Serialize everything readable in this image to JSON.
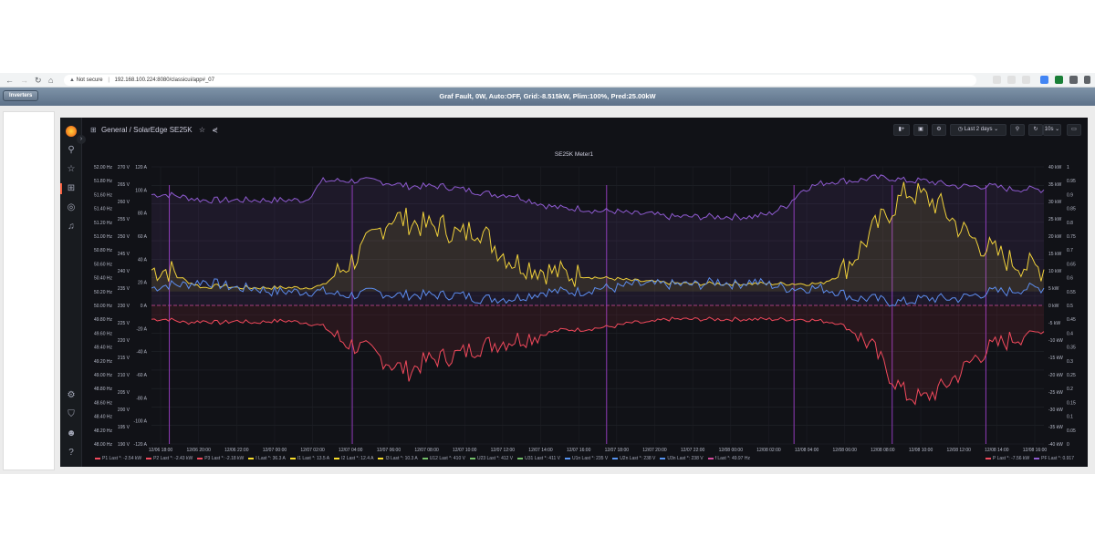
{
  "browser": {
    "security": "Not secure",
    "url": "192.168.100.224:8080/classicui/app#_07"
  },
  "app_header": {
    "inverters_label": "Inverters",
    "status": "Graf Fault, 0W, Auto:OFF, Grid:-8.515kW, Plim:100%, Pred:25.00kW"
  },
  "grafana": {
    "breadcrumb_folder": "General",
    "breadcrumb_sep": "/",
    "dashboard_title": "SolarEdge SE25K",
    "time_range": "Last 2 days",
    "refresh": "10s",
    "panel_title": "SE25K Meter1"
  },
  "colors": {
    "P": "#f2495c",
    "I": "#fade2a",
    "U": "#5794f2",
    "PF": "#8f5bd1",
    "f": "#d44a9c"
  },
  "chart_data": {
    "type": "line",
    "title": "SE25K Meter1",
    "x_ticks": [
      "12/06 18:00",
      "12/06 20:00",
      "12/06 22:00",
      "12/07 00:00",
      "12/07 02:00",
      "12/07 04:00",
      "12/07 06:00",
      "12/07 08:00",
      "12/07 10:00",
      "12/07 12:00",
      "12/07 14:00",
      "12/07 16:00",
      "12/07 18:00",
      "12/07 20:00",
      "12/07 22:00",
      "12/08 00:00",
      "12/08 02:00",
      "12/08 04:00",
      "12/08 06:00",
      "12/08 08:00",
      "12/08 10:00",
      "12/08 12:00",
      "12/08 14:00",
      "12/08 16:00"
    ],
    "y_axis_hz": [
      "52.00 Hz",
      "51.80 Hz",
      "51.60 Hz",
      "51.40 Hz",
      "51.20 Hz",
      "51.00 Hz",
      "50.80 Hz",
      "50.60 Hz",
      "50.40 Hz",
      "50.20 Hz",
      "50.00 Hz",
      "49.80 Hz",
      "49.60 Hz",
      "49.40 Hz",
      "49.20 Hz",
      "49.00 Hz",
      "48.80 Hz",
      "48.60 Hz",
      "48.40 Hz",
      "48.20 Hz",
      "48.00 Hz"
    ],
    "y_axis_v": [
      "270 V",
      "265 V",
      "260 V",
      "255 V",
      "250 V",
      "245 V",
      "240 V",
      "235 V",
      "230 V",
      "225 V",
      "220 V",
      "215 V",
      "210 V",
      "205 V",
      "200 V",
      "195 V",
      "190 V"
    ],
    "y_axis_a": [
      "120 A",
      "100 A",
      "80 A",
      "60 A",
      "40 A",
      "20 A",
      "0 A",
      "-20 A",
      "-40 A",
      "-60 A",
      "-80 A",
      "-100 A",
      "-120 A"
    ],
    "y_axis_kw": [
      "40 kW",
      "35 kW",
      "30 kW",
      "25 kW",
      "20 kW",
      "15 kW",
      "10 kW",
      "5 kW",
      "0 kW",
      "-5 kW",
      "-10 kW",
      "-15 kW",
      "-20 kW",
      "-25 kW",
      "-30 kW",
      "-35 kW",
      "-40 kW"
    ],
    "y_axis_pf": [
      "1",
      "0.95",
      "0.9",
      "0.85",
      "0.8",
      "0.75",
      "0.7",
      "0.65",
      "0.6",
      "0.55",
      "0.5",
      "0.45",
      "0.4",
      "0.35",
      "0.3",
      "0.25",
      "0.2",
      "0.15",
      "0.1",
      "0.05",
      "0"
    ],
    "series": [
      {
        "name": "P",
        "unit": "kW",
        "color": "#f2495c",
        "values": [
          -4,
          -4,
          -5,
          -4.5,
          -5,
          -4.5,
          -5,
          -4.5,
          -4.5,
          -5,
          -6,
          -10,
          -12,
          -14,
          -17,
          -19,
          -16,
          -15,
          -14,
          -12,
          -11,
          -10,
          -9,
          -8,
          -7,
          -7,
          -6.5,
          -6,
          -5,
          -5,
          -4,
          -4,
          -4,
          -4,
          -4,
          -4,
          -4,
          -4,
          -4,
          -4.5,
          -5,
          -8,
          -12,
          -20,
          -26,
          -27,
          -24,
          -20,
          -15,
          -12,
          -10,
          -8,
          -7.56
        ]
      },
      {
        "name": "I",
        "unit": "A",
        "color": "#fade2a",
        "values": [
          36,
          36,
          25,
          18,
          20,
          18,
          18,
          18,
          18,
          18,
          20,
          35,
          50,
          70,
          90,
          85,
          80,
          80,
          70,
          80,
          60,
          45,
          40,
          35,
          32,
          30,
          28,
          27,
          25,
          24,
          23,
          22,
          22,
          22,
          22,
          22,
          22,
          22,
          22,
          22,
          30,
          50,
          75,
          95,
          115,
          110,
          100,
          80,
          65,
          55,
          45,
          40,
          36.3
        ]
      },
      {
        "name": "U1n",
        "unit": "V",
        "color": "#5794f2",
        "values": [
          235,
          236,
          236,
          237,
          236,
          235,
          235,
          234,
          234,
          234,
          234,
          233,
          233,
          234,
          233,
          233,
          233,
          233,
          233,
          232,
          232,
          232,
          233,
          234,
          234,
          234,
          235,
          235,
          236,
          236,
          236,
          236,
          236,
          237,
          236,
          237,
          236,
          235,
          235,
          235,
          234,
          232,
          232,
          231,
          231,
          232,
          232,
          232,
          233,
          234,
          234,
          235,
          235
        ]
      },
      {
        "name": "PF",
        "unit": "",
        "color": "#8f5bd1",
        "values": [
          0.9,
          0.9,
          0.89,
          0.88,
          0.88,
          0.88,
          0.88,
          0.88,
          0.88,
          0.88,
          0.95,
          0.95,
          0.95,
          0.95,
          0.94,
          0.93,
          0.93,
          0.93,
          0.92,
          0.91,
          0.9,
          0.9,
          0.88,
          0.86,
          0.85,
          0.85,
          0.84,
          0.84,
          0.83,
          0.83,
          0.82,
          0.82,
          0.82,
          0.82,
          0.82,
          0.82,
          0.83,
          0.86,
          0.92,
          0.94,
          0.95,
          0.95,
          0.96,
          0.96,
          0.95,
          0.95,
          0.94,
          0.93,
          0.93,
          0.93,
          0.92,
          0.92,
          0.917
        ]
      }
    ]
  },
  "legend": [
    {
      "name": "P1",
      "last": "Last *: -2.54 kW",
      "color": "#f2495c"
    },
    {
      "name": "P2",
      "last": "Last *: -2.43 kW",
      "color": "#f2495c"
    },
    {
      "name": "P3",
      "last": "Last *: -2.18 kW",
      "color": "#f2495c"
    },
    {
      "name": "I",
      "last": "Last *: 36.3 A",
      "color": "#fade2a"
    },
    {
      "name": "I1",
      "last": "Last *: 13.5 A",
      "color": "#fade2a"
    },
    {
      "name": "I2",
      "last": "Last *: 12.4 A",
      "color": "#fade2a"
    },
    {
      "name": "I3",
      "last": "Last *: 10.3 A",
      "color": "#fade2a"
    },
    {
      "name": "U12",
      "last": "Last *: 410 V",
      "color": "#73bf69"
    },
    {
      "name": "U23",
      "last": "Last *: 412 V",
      "color": "#73bf69"
    },
    {
      "name": "U31",
      "last": "Last *: 411 V",
      "color": "#73bf69"
    },
    {
      "name": "U1n",
      "last": "Last *: 235 V",
      "color": "#5794f2"
    },
    {
      "name": "U2n",
      "last": "Last *: 238 V",
      "color": "#5794f2"
    },
    {
      "name": "U3n",
      "last": "Last *: 238 V",
      "color": "#5794f2"
    },
    {
      "name": "f",
      "last": "Last *: 49.97 Hz",
      "color": "#d44a9c"
    }
  ],
  "legend_right": [
    {
      "name": "P",
      "last": "Last *: -7.56 kW",
      "color": "#f2495c"
    },
    {
      "name": "PF",
      "last": "Last *: 0.917",
      "color": "#8f5bd1"
    }
  ]
}
